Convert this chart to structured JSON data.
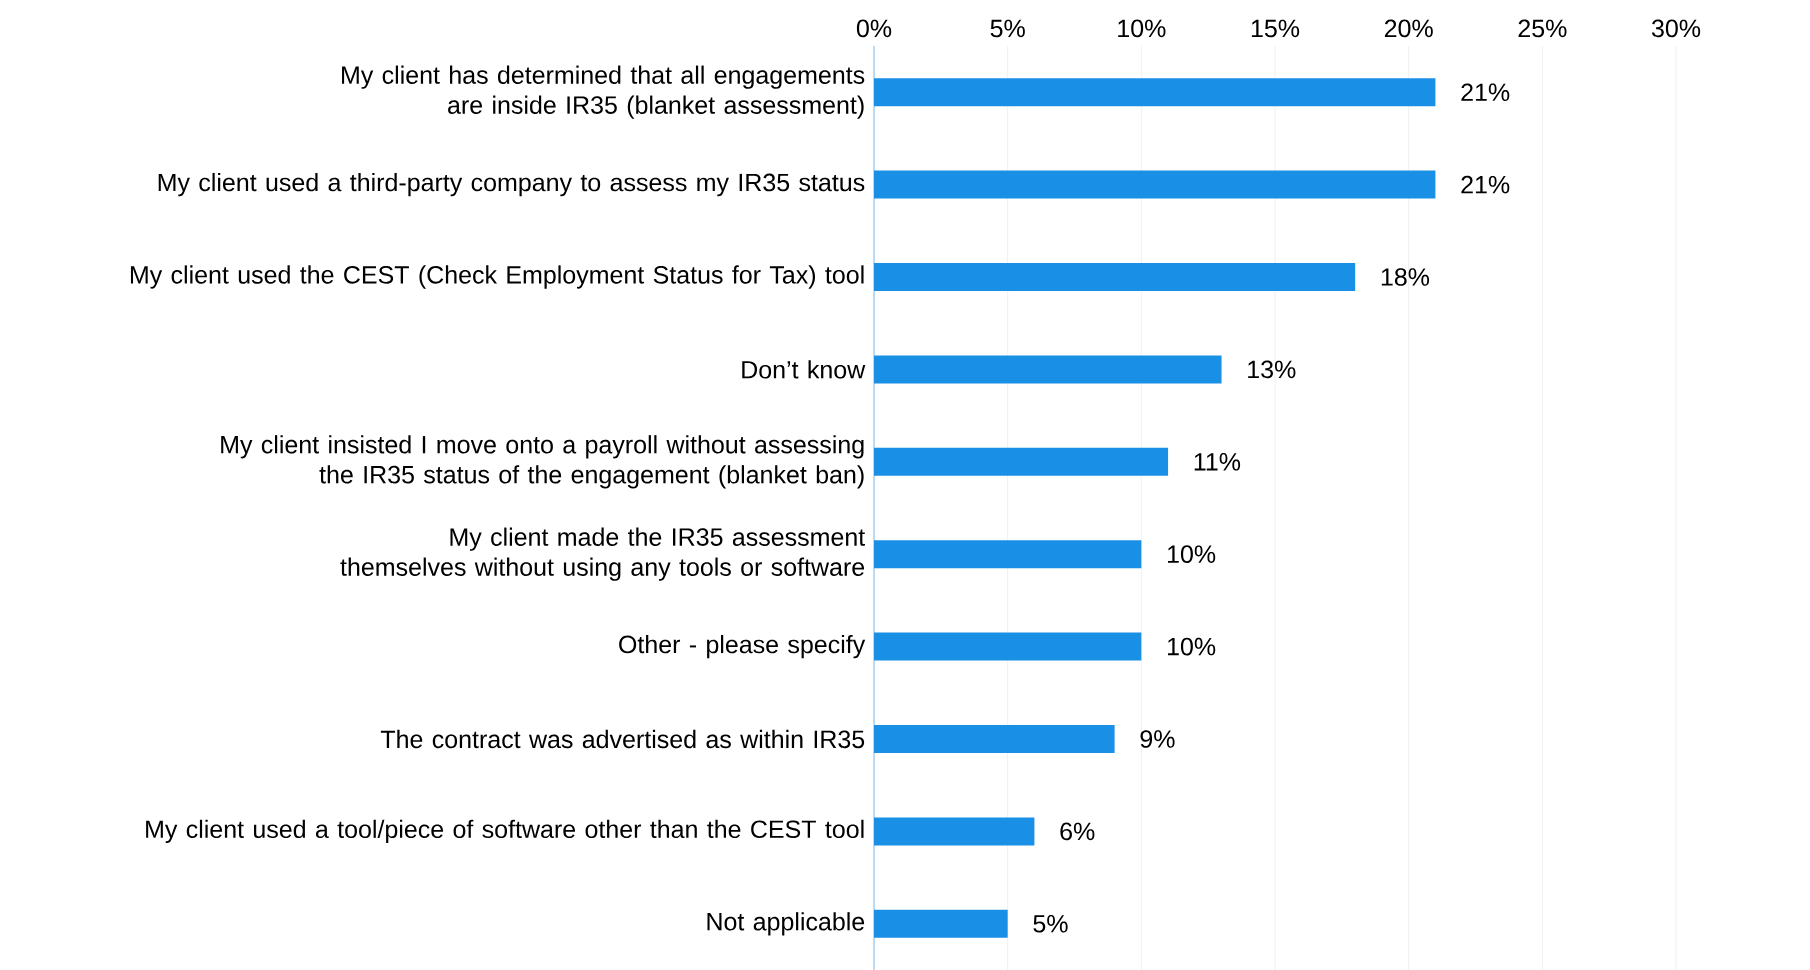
{
  "chart_data": {
    "type": "bar",
    "orientation": "horizontal",
    "categories": [
      "My client has determined that all engagements are inside IR35 (blanket assessment)",
      "My client used a third-party company to assess my IR35 status",
      "My client used the CEST (Check Employment Status for Tax) tool",
      "Don’t know",
      "My client insisted I move onto a payroll without assessing the IR35 status of the engagement (blanket ban)",
      "My client made the IR35 assessment themselves without using any tools or software",
      "Other - please specify",
      "The contract was advertised as within IR35",
      "My client used a tool/piece of software other than the CEST tool",
      "Not applicable"
    ],
    "values": [
      21,
      21,
      18,
      13,
      11,
      10,
      10,
      9,
      6,
      5
    ],
    "value_labels": [
      "21%",
      "21%",
      "18%",
      "13%",
      "11%",
      "10%",
      "10%",
      "9%",
      "6%",
      "5%"
    ],
    "color": "#1a8fe6",
    "xlim": [
      0,
      30
    ],
    "xticks": [
      {
        "value": 0,
        "label": "0%"
      },
      {
        "value": 5,
        "label": "5%"
      },
      {
        "value": 10,
        "label": "10%"
      },
      {
        "value": 15,
        "label": "15%"
      },
      {
        "value": 20,
        "label": "20%"
      },
      {
        "value": 25,
        "label": "25%"
      },
      {
        "value": 30,
        "label": "30%"
      }
    ],
    "grid": "x"
  }
}
